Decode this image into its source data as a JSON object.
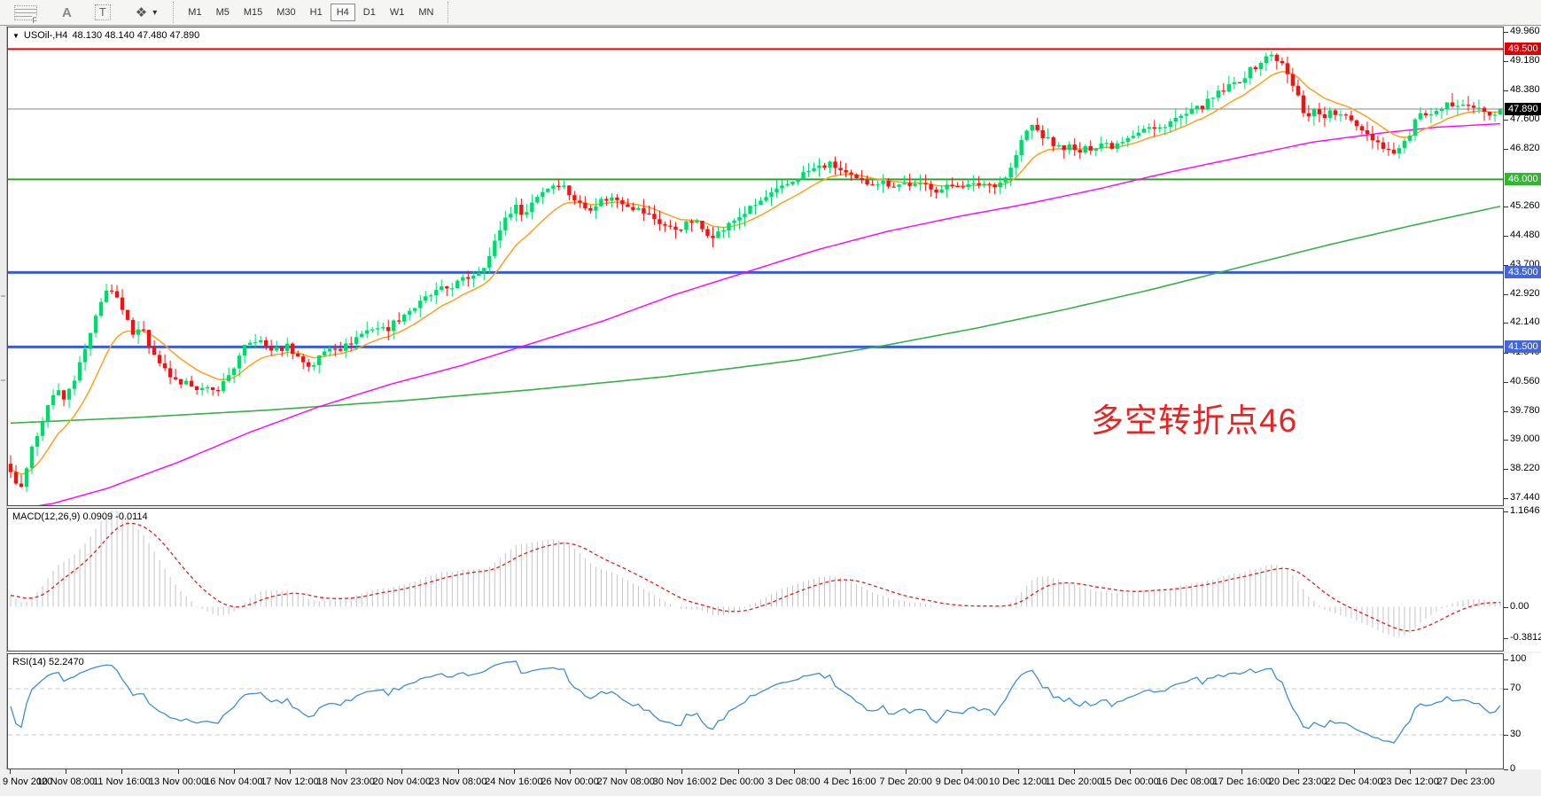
{
  "toolbar": {
    "buttons": [
      {
        "name": "docking-grid",
        "glyph": "F"
      },
      {
        "name": "text-label",
        "glyph": "A"
      },
      {
        "name": "text-box",
        "glyph": "T"
      },
      {
        "name": "shapes",
        "glyph": "❖"
      },
      {
        "name": "dropdown",
        "glyph": "▾"
      }
    ],
    "timeframes": [
      "M1",
      "M5",
      "M15",
      "M30",
      "H1",
      "H4",
      "D1",
      "W1",
      "MN"
    ],
    "active_timeframe": "H4"
  },
  "main_chart": {
    "title_symbol": "USOil-,H4",
    "title_ohlc": "48.130 48.140 47.480 47.890",
    "annotation": {
      "text": "多空转折点46",
      "color": "#e62424"
    },
    "axis_ticks": [
      "49.960",
      "49.180",
      "48.380",
      "47.600",
      "46.820",
      "45.260",
      "44.480",
      "43.700",
      "42.920",
      "42.140",
      "41.340",
      "40.560",
      "39.780",
      "39.000",
      "38.220",
      "37.440"
    ],
    "levels": [
      {
        "label": "49.500",
        "value": 49.5,
        "color": "#e80000",
        "badge_bg": "#e00000",
        "width": 2
      },
      {
        "label": "46.000",
        "value": 46.0,
        "color": "#2aa52a",
        "badge_bg": "#2db82d",
        "width": 2
      },
      {
        "label": "43.500",
        "value": 43.5,
        "color": "#3a5bd9",
        "badge_bg": "#4466dd",
        "width": 3
      },
      {
        "label": "41.500",
        "value": 41.5,
        "color": "#3a5bd9",
        "badge_bg": "#4466dd",
        "width": 3
      }
    ],
    "current_price": {
      "label": "47.890",
      "value": 47.89,
      "line_color": "#858585",
      "badge_bg": "#000000"
    }
  },
  "macd_panel": {
    "label": "MACD(12,26,9) 0.0909 -0.0114",
    "axis_ticks": [
      {
        "label": "1.1646",
        "value": 1.1646
      },
      {
        "label": "0.00",
        "value": 0.0
      },
      {
        "label": "-0.3812",
        "value": -0.3812
      }
    ]
  },
  "rsi_panel": {
    "label": "RSI(14) 52.2470",
    "axis_ticks": [
      {
        "label": "100",
        "value": 100
      },
      {
        "label": "70",
        "value": 70
      },
      {
        "label": "30",
        "value": 30
      },
      {
        "label": "0",
        "value": 0
      }
    ]
  },
  "time_axis": {
    "labels": [
      "9 Nov 2020",
      "10 Nov 08:00",
      "11 Nov 16:00",
      "13 Nov 00:00",
      "16 Nov 04:00",
      "17 Nov 12:00",
      "18 Nov 23:00",
      "20 Nov 04:00",
      "23 Nov 08:00",
      "24 Nov 16:00",
      "26 Nov 00:00",
      "27 Nov 08:00",
      "30 Nov 16:00",
      "2 Dec 00:00",
      "3 Dec 08:00",
      "4 Dec 16:00",
      "7 Dec 20:00",
      "9 Dec 04:00",
      "10 Dec 12:00",
      "11 Dec 20:00",
      "15 Dec 00:00",
      "16 Dec 08:00",
      "17 Dec 16:00",
      "20 Dec 23:00",
      "22 Dec 04:00",
      "23 Dec 12:00",
      "27 Dec 23:00"
    ]
  },
  "chart_data": {
    "type": "candlestick",
    "symbol": "USOil-",
    "timeframe": "H4",
    "current_bar_ohlc": {
      "open": 48.13,
      "high": 48.14,
      "low": 47.48,
      "close": 47.89
    },
    "visible_range": {
      "start": "9 Nov 2020",
      "end": "27 Dec 23:00"
    },
    "price_axis_range": [
      37.25,
      50.08
    ],
    "horizontal_levels": [
      49.5,
      46.0,
      43.5,
      41.5
    ],
    "candles_approx_count": 281,
    "candle_colors": {
      "up": "#00d96e",
      "down": "#ee1414"
    },
    "price_path_anchors": [
      [
        8,
        38.4
      ],
      [
        14,
        38.05
      ],
      [
        20,
        37.62
      ],
      [
        28,
        38.2
      ],
      [
        40,
        39.1
      ],
      [
        52,
        39.9
      ],
      [
        62,
        40.35
      ],
      [
        72,
        40.05
      ],
      [
        82,
        40.6
      ],
      [
        92,
        41.2
      ],
      [
        102,
        41.9
      ],
      [
        112,
        42.6
      ],
      [
        120,
        43.15
      ],
      [
        128,
        42.9
      ],
      [
        138,
        42.4
      ],
      [
        148,
        41.9
      ],
      [
        158,
        42.1
      ],
      [
        168,
        41.5
      ],
      [
        178,
        41.0
      ],
      [
        190,
        40.75
      ],
      [
        202,
        40.4
      ],
      [
        214,
        40.55
      ],
      [
        226,
        40.35
      ],
      [
        240,
        40.3
      ],
      [
        252,
        40.55
      ],
      [
        264,
        41.0
      ],
      [
        276,
        41.5
      ],
      [
        288,
        41.7
      ],
      [
        300,
        41.5
      ],
      [
        312,
        41.4
      ],
      [
        324,
        41.55
      ],
      [
        336,
        41.2
      ],
      [
        350,
        40.95
      ],
      [
        362,
        41.3
      ],
      [
        374,
        41.55
      ],
      [
        386,
        41.45
      ],
      [
        398,
        41.7
      ],
      [
        410,
        41.9
      ],
      [
        422,
        42.05
      ],
      [
        434,
        41.95
      ],
      [
        446,
        42.2
      ],
      [
        458,
        42.45
      ],
      [
        470,
        42.6
      ],
      [
        482,
        42.85
      ],
      [
        494,
        43.0
      ],
      [
        506,
        43.1
      ],
      [
        518,
        43.25
      ],
      [
        530,
        43.4
      ],
      [
        542,
        43.6
      ],
      [
        552,
        43.95
      ],
      [
        562,
        44.6
      ],
      [
        572,
        45.1
      ],
      [
        582,
        45.25
      ],
      [
        592,
        45.05
      ],
      [
        602,
        45.5
      ],
      [
        612,
        45.7
      ],
      [
        622,
        45.85
      ],
      [
        632,
        45.9
      ],
      [
        642,
        45.6
      ],
      [
        652,
        45.35
      ],
      [
        662,
        45.2
      ],
      [
        674,
        45.4
      ],
      [
        686,
        45.5
      ],
      [
        698,
        45.45
      ],
      [
        710,
        45.3
      ],
      [
        722,
        45.15
      ],
      [
        734,
        45.0
      ],
      [
        746,
        44.8
      ],
      [
        758,
        44.65
      ],
      [
        770,
        44.75
      ],
      [
        782,
        44.9
      ],
      [
        794,
        44.6
      ],
      [
        806,
        44.5
      ],
      [
        818,
        44.7
      ],
      [
        830,
        44.95
      ],
      [
        842,
        45.15
      ],
      [
        854,
        45.35
      ],
      [
        866,
        45.55
      ],
      [
        878,
        45.7
      ],
      [
        890,
        45.9
      ],
      [
        902,
        46.1
      ],
      [
        914,
        46.25
      ],
      [
        926,
        46.35
      ],
      [
        938,
        46.4
      ],
      [
        950,
        46.2
      ],
      [
        962,
        46.0
      ],
      [
        974,
        45.9
      ],
      [
        986,
        45.95
      ],
      [
        998,
        45.9
      ],
      [
        1010,
        45.85
      ],
      [
        1022,
        45.9
      ],
      [
        1034,
        45.8
      ],
      [
        1046,
        45.85
      ],
      [
        1058,
        45.7
      ],
      [
        1070,
        45.8
      ],
      [
        1082,
        45.9
      ],
      [
        1094,
        45.8
      ],
      [
        1106,
        45.9
      ],
      [
        1118,
        45.85
      ],
      [
        1130,
        45.95
      ],
      [
        1140,
        46.3
      ],
      [
        1148,
        46.8
      ],
      [
        1156,
        47.25
      ],
      [
        1164,
        47.45
      ],
      [
        1174,
        47.2
      ],
      [
        1184,
        47.0
      ],
      [
        1194,
        46.85
      ],
      [
        1204,
        46.9
      ],
      [
        1214,
        46.7
      ],
      [
        1224,
        46.8
      ],
      [
        1234,
        46.9
      ],
      [
        1244,
        47.0
      ],
      [
        1254,
        46.9
      ],
      [
        1264,
        47.05
      ],
      [
        1274,
        47.2
      ],
      [
        1284,
        47.3
      ],
      [
        1294,
        47.4
      ],
      [
        1304,
        47.3
      ],
      [
        1314,
        47.5
      ],
      [
        1324,
        47.6
      ],
      [
        1334,
        47.7
      ],
      [
        1344,
        47.8
      ],
      [
        1354,
        47.95
      ],
      [
        1364,
        48.1
      ],
      [
        1374,
        48.3
      ],
      [
        1384,
        48.45
      ],
      [
        1394,
        48.6
      ],
      [
        1404,
        48.8
      ],
      [
        1414,
        49.0
      ],
      [
        1424,
        49.2
      ],
      [
        1434,
        49.35
      ],
      [
        1444,
        49.15
      ],
      [
        1454,
        48.7
      ],
      [
        1464,
        48.2
      ],
      [
        1472,
        47.7
      ],
      [
        1482,
        47.85
      ],
      [
        1492,
        47.7
      ],
      [
        1502,
        47.8
      ],
      [
        1512,
        47.7
      ],
      [
        1522,
        47.6
      ],
      [
        1532,
        47.45
      ],
      [
        1544,
        47.2
      ],
      [
        1556,
        46.95
      ],
      [
        1568,
        46.75
      ],
      [
        1580,
        46.85
      ],
      [
        1592,
        47.3
      ],
      [
        1602,
        47.85
      ],
      [
        1610,
        47.6
      ],
      [
        1620,
        47.75
      ],
      [
        1630,
        47.95
      ],
      [
        1640,
        48.05
      ],
      [
        1650,
        48.1
      ],
      [
        1660,
        47.95
      ],
      [
        1670,
        47.85
      ],
      [
        1680,
        47.7
      ],
      [
        1690,
        47.89
      ]
    ],
    "moving_averages": [
      {
        "name": "fast",
        "color": "#ffa01e",
        "type": "ema-computed",
        "period": 12
      },
      {
        "name": "mid",
        "color": "#ff00ff",
        "type": "anchors",
        "anchors": [
          [
            8,
            37.1
          ],
          [
            60,
            37.3
          ],
          [
            120,
            37.7
          ],
          [
            200,
            38.4
          ],
          [
            280,
            39.2
          ],
          [
            360,
            39.9
          ],
          [
            440,
            40.5
          ],
          [
            520,
            41.0
          ],
          [
            600,
            41.6
          ],
          [
            680,
            42.2
          ],
          [
            760,
            42.9
          ],
          [
            840,
            43.5
          ],
          [
            920,
            44.1
          ],
          [
            1000,
            44.6
          ],
          [
            1080,
            45.0
          ],
          [
            1160,
            45.35
          ],
          [
            1240,
            45.75
          ],
          [
            1320,
            46.2
          ],
          [
            1400,
            46.6
          ],
          [
            1480,
            47.0
          ],
          [
            1560,
            47.25
          ],
          [
            1620,
            47.4
          ],
          [
            1697,
            47.5
          ]
        ]
      },
      {
        "name": "slow",
        "color": "#38b04a",
        "type": "anchors",
        "anchors": [
          [
            8,
            39.45
          ],
          [
            150,
            39.6
          ],
          [
            300,
            39.8
          ],
          [
            450,
            40.05
          ],
          [
            600,
            40.35
          ],
          [
            750,
            40.7
          ],
          [
            900,
            41.15
          ],
          [
            1000,
            41.55
          ],
          [
            1100,
            42.0
          ],
          [
            1200,
            42.5
          ],
          [
            1300,
            43.05
          ],
          [
            1400,
            43.65
          ],
          [
            1500,
            44.25
          ],
          [
            1600,
            44.8
          ],
          [
            1697,
            45.3
          ]
        ]
      }
    ],
    "macd": {
      "params": [
        12,
        26,
        9
      ],
      "value": 0.0909,
      "signal": -0.0114,
      "axis_max": 1.1646,
      "axis_min": -0.3812,
      "histogram_color": "#c4c4c4",
      "signal_color": "#dd2020"
    },
    "rsi": {
      "period": 14,
      "value": 52.247,
      "levels": [
        70,
        30
      ],
      "axis": [
        0,
        30,
        70,
        100
      ],
      "line_color": "#3c8fd4",
      "level_color": "#c8c8c8"
    }
  }
}
